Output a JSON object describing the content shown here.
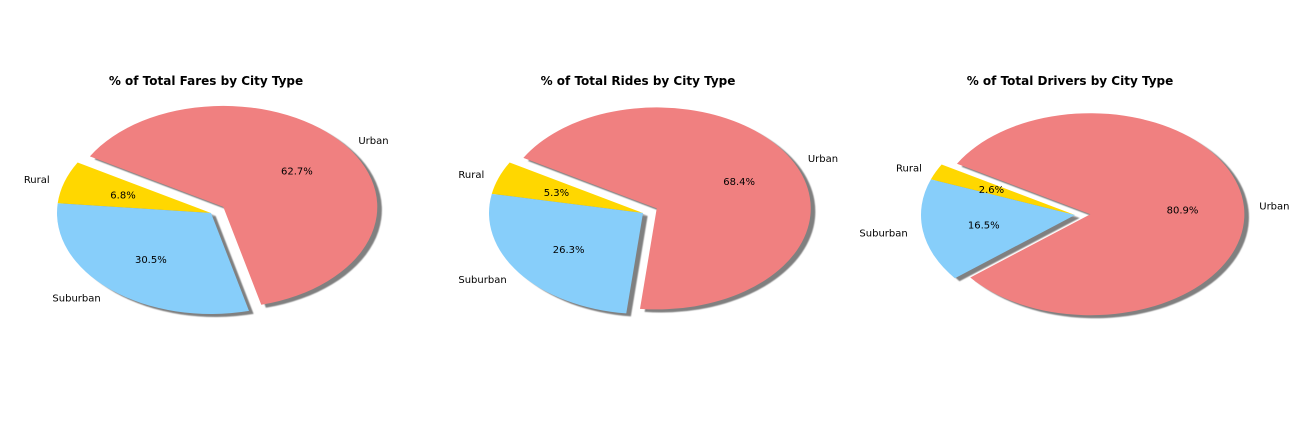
{
  "chart_data": [
    {
      "type": "pie",
      "title": "% of Total Fares by City Type",
      "labels": [
        "Rural",
        "Suburban",
        "Urban"
      ],
      "values": [
        6.8,
        30.5,
        62.7
      ],
      "percent_labels": [
        "6.8%",
        "30.5%",
        "62.7%"
      ],
      "colors": [
        "#ffd700",
        "#87cefa",
        "#f08080"
      ],
      "explode": [
        0,
        0,
        0.1
      ],
      "start_angle_deg": 150,
      "shadow": true,
      "legend": false
    },
    {
      "type": "pie",
      "title": "% of Total Rides by City Type",
      "labels": [
        "Rural",
        "Suburban",
        "Urban"
      ],
      "values": [
        5.3,
        26.3,
        68.4
      ],
      "percent_labels": [
        "5.3%",
        "26.3%",
        "68.4%"
      ],
      "colors": [
        "#ffd700",
        "#87cefa",
        "#f08080"
      ],
      "explode": [
        0,
        0,
        0.1
      ],
      "start_angle_deg": 150,
      "shadow": true,
      "legend": false
    },
    {
      "type": "pie",
      "title": "% of Total Drivers by City Type",
      "labels": [
        "Rural",
        "Suburban",
        "Urban"
      ],
      "values": [
        2.6,
        16.5,
        80.9
      ],
      "percent_labels": [
        "2.6%",
        "16.5%",
        "80.9%"
      ],
      "colors": [
        "#ffd700",
        "#87cefa",
        "#f08080"
      ],
      "explode": [
        0,
        0,
        0.1
      ],
      "start_angle_deg": 150,
      "shadow": true,
      "legend": false
    }
  ]
}
